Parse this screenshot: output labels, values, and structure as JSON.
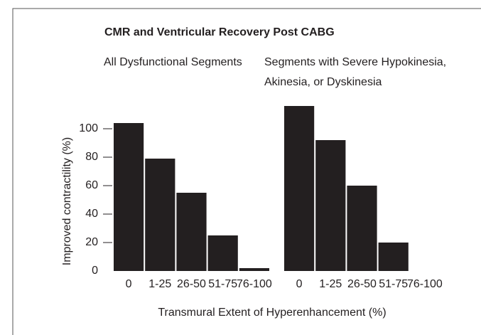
{
  "chart_data": [
    {
      "type": "bar",
      "title": "CMR and Ventricular Recovery Post CABG",
      "subtitle": [
        "All Dysfunctional Segments"
      ],
      "ylabel": "Improved contractility (%)",
      "xlabel": "Transmural Extent of Hyperenhancement (%)",
      "categories": [
        "0",
        "1-25",
        "26-50",
        "51-75",
        "76-100"
      ],
      "values": [
        104,
        79,
        55,
        25,
        2
      ],
      "color": "#231f20",
      "ylim": [
        0,
        120
      ],
      "yticks": [
        0,
        20,
        40,
        60,
        80,
        100
      ]
    },
    {
      "type": "bar",
      "subtitle": [
        "Segments with Severe Hypokinesia,",
        "Akinesia, or Dyskinesia"
      ],
      "categories": [
        "0",
        "1-25",
        "26-50",
        "51-75",
        "76-100"
      ],
      "values": [
        116,
        92,
        60,
        20,
        0
      ],
      "color": "#231f20",
      "ylim": [
        0,
        120
      ]
    }
  ]
}
